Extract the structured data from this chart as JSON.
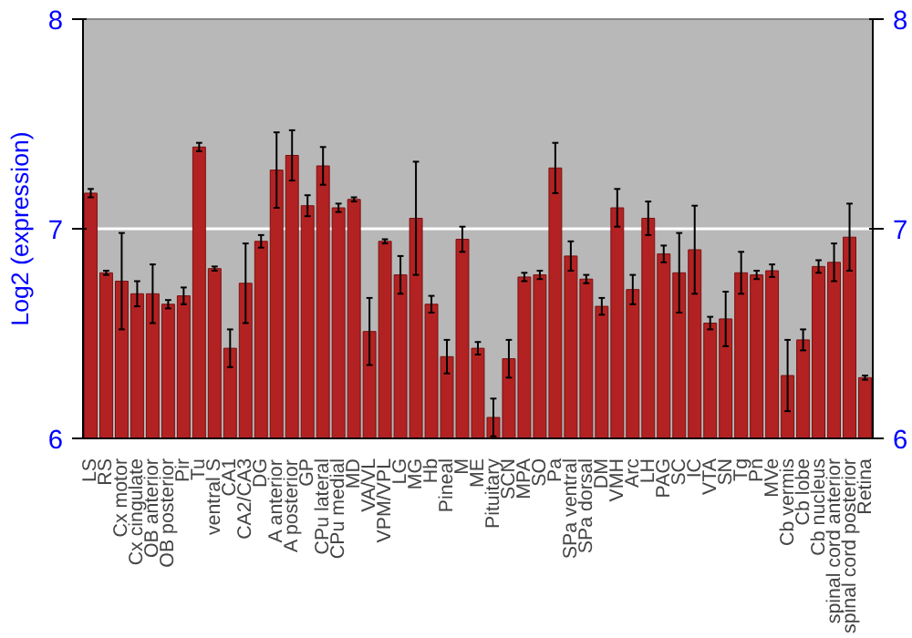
{
  "chart_data": {
    "type": "bar",
    "ylabel": "Log2 (expression)",
    "categories": [
      "LS",
      "RS",
      "Cx motor",
      "Cx cingulate",
      "OB anterior",
      "OB posterior",
      "Pir",
      "Tu",
      "ventral S",
      "CA1",
      "CA2/CA3",
      "DG",
      "A anterior",
      "A posterior",
      "GP",
      "CPu lateral",
      "CPu medial",
      "MD",
      "VA/VL",
      "VPM/VPL",
      "LG",
      "MG",
      "Hb",
      "Pineal",
      "M",
      "ME",
      "Pituitary",
      "SCN",
      "MPA",
      "SO",
      "Pa",
      "SPa ventral",
      "SPa dorsal",
      "DM",
      "VMH",
      "Arc",
      "LH",
      "PAG",
      "SC",
      "IC",
      "VTA",
      "SN",
      "Tg",
      "Pn",
      "MVe",
      "Cb vermis",
      "Cb lobe",
      "Cb nucleus",
      "spinal cord anterior",
      "spinal cord posterior",
      "Retina"
    ],
    "values": [
      7.17,
      6.79,
      6.75,
      6.69,
      6.69,
      6.64,
      6.68,
      7.39,
      6.81,
      6.43,
      6.74,
      6.94,
      7.28,
      7.35,
      7.11,
      7.3,
      7.1,
      7.14,
      6.51,
      6.94,
      6.78,
      7.05,
      6.64,
      6.39,
      6.95,
      6.43,
      6.1,
      6.38,
      6.77,
      6.78,
      7.29,
      6.87,
      6.76,
      6.63,
      7.1,
      6.71,
      7.05,
      6.88,
      6.79,
      6.9,
      6.55,
      6.57,
      6.79,
      6.78,
      6.8,
      6.3,
      6.47,
      6.82,
      6.84,
      6.96,
      6.29
    ],
    "errors": [
      0.02,
      0.01,
      0.23,
      0.06,
      0.14,
      0.02,
      0.04,
      0.02,
      0.01,
      0.09,
      0.19,
      0.03,
      0.18,
      0.12,
      0.05,
      0.09,
      0.02,
      0.01,
      0.16,
      0.01,
      0.09,
      0.27,
      0.04,
      0.08,
      0.06,
      0.03,
      0.09,
      0.09,
      0.02,
      0.02,
      0.12,
      0.07,
      0.02,
      0.04,
      0.09,
      0.07,
      0.08,
      0.04,
      0.19,
      0.21,
      0.03,
      0.13,
      0.1,
      0.02,
      0.03,
      0.17,
      0.05,
      0.03,
      0.09,
      0.16,
      0.01
    ],
    "color": "#b22222",
    "ylim": [
      6,
      8
    ],
    "yticks": [
      6,
      7,
      8
    ],
    "y2lim": [
      6,
      8
    ],
    "y2ticks": [
      6,
      7,
      8
    ],
    "grid": "y"
  }
}
